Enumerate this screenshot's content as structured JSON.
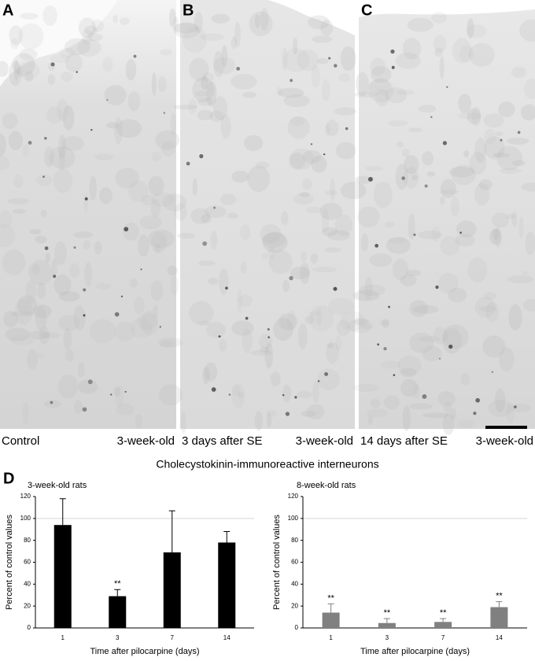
{
  "panels": [
    {
      "letter": "A",
      "left_caption": "Control",
      "right_caption": "3-week-old"
    },
    {
      "letter": "B",
      "left_caption": "3 days after SE",
      "right_caption": "3-week-old"
    },
    {
      "letter": "C",
      "left_caption": "14 days after SE",
      "right_caption": "3-week-old"
    }
  ],
  "figure_title": "Cholecystokinin-immunoreactive interneurons",
  "chart_panel_letter": "D",
  "chart_data": [
    {
      "type": "bar",
      "title": "3-week-old rats",
      "x_label": "Time after pilocarpine (days)",
      "y_label": "Percent of control values",
      "categories": [
        "1",
        "3",
        "7",
        "14"
      ],
      "values": [
        94,
        29,
        69,
        78
      ],
      "errors": [
        24,
        6,
        38,
        10
      ],
      "annotations": [
        null,
        "**",
        null,
        null
      ],
      "color": "#000000",
      "ylim": [
        0,
        120
      ],
      "yticks": [
        0,
        20,
        40,
        60,
        80,
        100,
        120
      ],
      "reference_line": 100
    },
    {
      "type": "bar",
      "title": "8-week-old rats",
      "x_label": "Time after pilocarpine (days)",
      "y_label": "Percent of control values",
      "categories": [
        "1",
        "3",
        "7",
        "14"
      ],
      "values": [
        14,
        4.5,
        5.5,
        19
      ],
      "errors": [
        8,
        4,
        3,
        5
      ],
      "annotations": [
        "**",
        "**",
        "**",
        "**"
      ],
      "color": "#808080",
      "ylim": [
        0,
        120
      ],
      "yticks": [
        0,
        20,
        40,
        60,
        80,
        100,
        120
      ],
      "reference_line": 100
    }
  ]
}
